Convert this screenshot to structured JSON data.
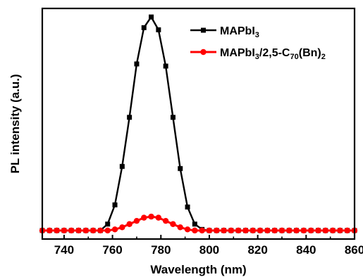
{
  "chart_data": {
    "type": "line",
    "xlabel": "Wavelength (nm)",
    "ylabel": "PL intensity (a.u.)",
    "xlim": [
      731,
      860
    ],
    "ylim": [
      -0.04,
      1.04
    ],
    "x_ticks": [
      "740",
      "760",
      "780",
      "800",
      "820",
      "840",
      "860"
    ],
    "grid": false,
    "legend_position": "top-right",
    "series": [
      {
        "name": "MAPbI3",
        "legend_label": {
          "base": "MAPbI",
          "sub": "3",
          "rest": ""
        },
        "color": "#000000",
        "marker": "square",
        "x": [
          731,
          734,
          737,
          740,
          743,
          746,
          749,
          752,
          755,
          758,
          761,
          764,
          767,
          770,
          773,
          776,
          779,
          782,
          785,
          788,
          791,
          794,
          797,
          800,
          803,
          806,
          809,
          812,
          815,
          818,
          821,
          824,
          827,
          830,
          833,
          836,
          839,
          842,
          845,
          848,
          851,
          854,
          857,
          860
        ],
        "y": [
          0,
          0,
          0,
          0,
          0,
          0,
          0,
          0,
          0,
          0.03,
          0.12,
          0.3,
          0.53,
          0.78,
          0.95,
          1.0,
          0.94,
          0.77,
          0.53,
          0.29,
          0.11,
          0.03,
          0.005,
          0,
          0,
          0,
          0,
          0,
          0,
          0,
          0,
          0,
          0,
          0,
          0,
          0,
          0,
          0,
          0,
          0,
          0,
          0,
          0,
          0
        ]
      },
      {
        "name": "MAPbI3/2,5-C70(Bn)2",
        "legend_label": {
          "base": "MAPbI",
          "sub": "3",
          "rest": "/2,5-C",
          "sub2": "70",
          "rest2": "(Bn)",
          "sub3": "2"
        },
        "color": "#ff0000",
        "marker": "circle",
        "x": [
          731,
          734,
          737,
          740,
          743,
          746,
          749,
          752,
          755,
          758,
          761,
          764,
          767,
          770,
          773,
          776,
          779,
          782,
          785,
          788,
          791,
          794,
          797,
          800,
          803,
          806,
          809,
          812,
          815,
          818,
          821,
          824,
          827,
          830,
          833,
          836,
          839,
          842,
          845,
          848,
          851,
          854,
          857,
          860
        ],
        "y": [
          0,
          0,
          0,
          0,
          0,
          0,
          0,
          0,
          0,
          0,
          0.005,
          0.015,
          0.03,
          0.045,
          0.06,
          0.065,
          0.06,
          0.045,
          0.03,
          0.015,
          0.005,
          0,
          0,
          0,
          0,
          0,
          0,
          0,
          0,
          0,
          0,
          0,
          0,
          0,
          0,
          0,
          0,
          0,
          0,
          0,
          0,
          0,
          0,
          0
        ]
      }
    ]
  }
}
